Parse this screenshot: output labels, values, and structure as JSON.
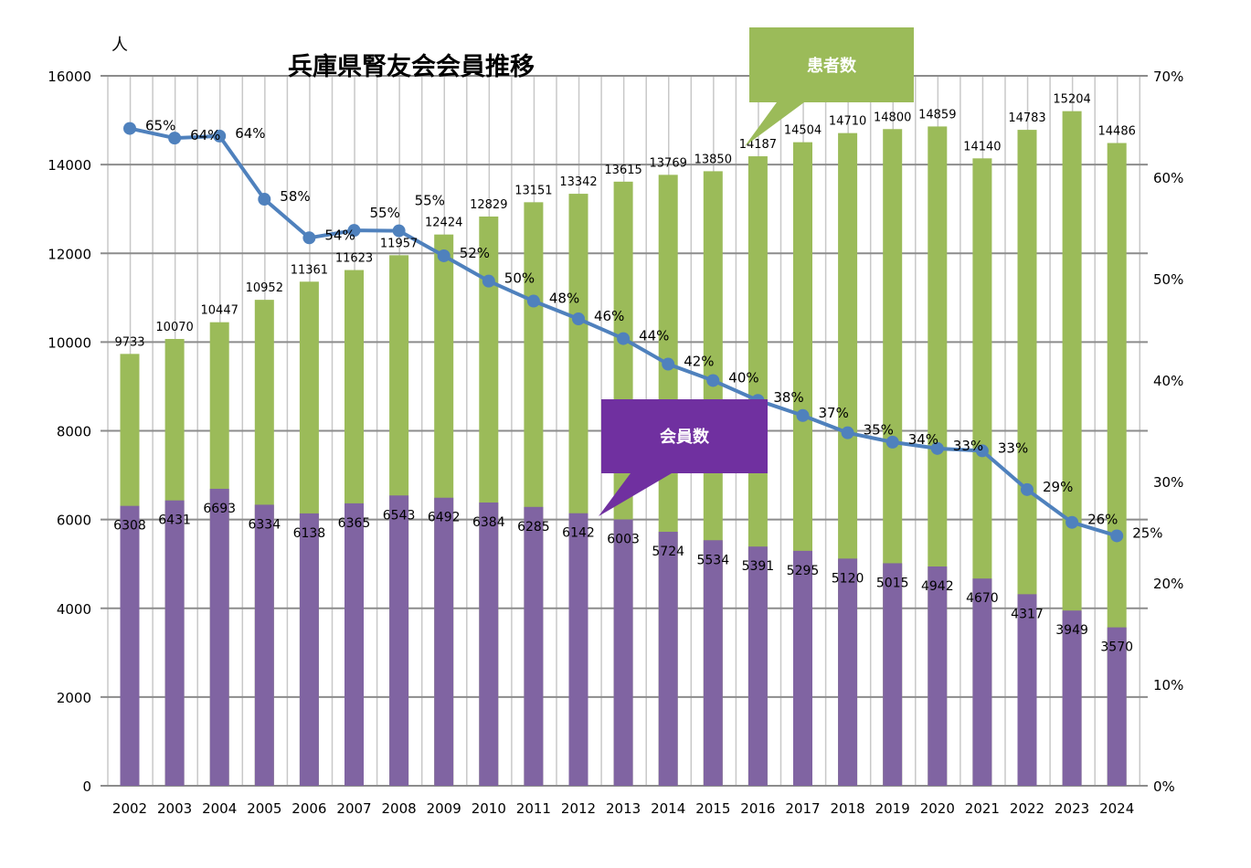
{
  "chart_data": {
    "type": "bar",
    "title": "兵庫県腎友会会員推移",
    "ylabel": "人",
    "ylim": [
      0,
      16000
    ],
    "y2lim": [
      0,
      0.7
    ],
    "yticks": [
      "0",
      "2000",
      "4000",
      "6000",
      "8000",
      "10000",
      "12000",
      "14000",
      "16000"
    ],
    "y2ticks": [
      "0%",
      "10%",
      "20%",
      "30%",
      "40%",
      "50%",
      "60%",
      "70%"
    ],
    "grid": true,
    "categories": [
      "2002",
      "2003",
      "2004",
      "2005",
      "2006",
      "2007",
      "2008",
      "2009",
      "2010",
      "2011",
      "2012",
      "2013",
      "2014",
      "2015",
      "2016",
      "2017",
      "2018",
      "2019",
      "2020",
      "2021",
      "2022",
      "2023",
      "2024"
    ],
    "series": [
      {
        "name": "患者数",
        "type": "bar",
        "color": "#9bbb59",
        "values": [
          9733,
          10070,
          10447,
          10952,
          11361,
          11623,
          11957,
          12424,
          12829,
          13151,
          13342,
          13615,
          13769,
          13850,
          14187,
          14504,
          14710,
          14800,
          14859,
          14140,
          14783,
          15204,
          14486
        ]
      },
      {
        "name": "会員数",
        "type": "bar",
        "color": "#8064a2",
        "values": [
          6308,
          6431,
          6693,
          6334,
          6138,
          6365,
          6543,
          6492,
          6384,
          6285,
          6142,
          6003,
          5724,
          5534,
          5391,
          5295,
          5120,
          5015,
          4942,
          4670,
          4317,
          3949,
          3570
        ]
      },
      {
        "type": "line",
        "axis": "right",
        "color": "#4f81bd",
        "labels": [
          "65%",
          "64%",
          "64%",
          "58%",
          "54%",
          "55%",
          "55%",
          "52%",
          "50%",
          "48%",
          "46%",
          "44%",
          "42%",
          "40%",
          "38%",
          "37%",
          "35%",
          "34%",
          "33%",
          "33%",
          "29%",
          "26%",
          "25%"
        ]
      }
    ],
    "callouts": [
      {
        "text": "患者数",
        "color": "#9bbb59"
      },
      {
        "text": "会員数",
        "color": "#7030a0"
      }
    ]
  }
}
